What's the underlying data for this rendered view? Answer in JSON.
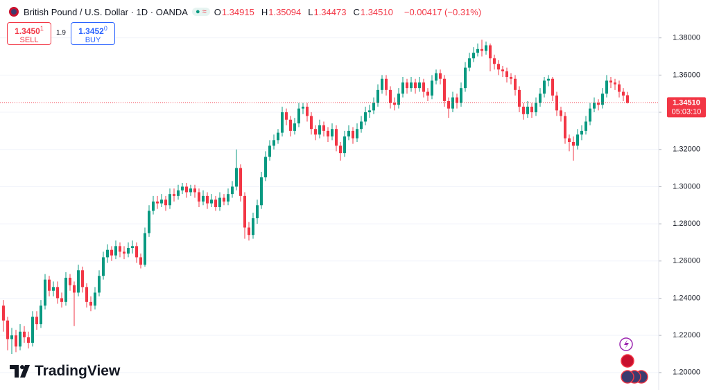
{
  "header": {
    "title": "British Pound / U.S. Dollar · 1D · OANDA",
    "ohlc": [
      {
        "key": "O",
        "value": "1.34915"
      },
      {
        "key": "H",
        "value": "1.35094"
      },
      {
        "key": "L",
        "value": "1.34473"
      },
      {
        "key": "C",
        "value": "1.34510"
      }
    ],
    "change": "−0.00417 (−0.31%)"
  },
  "trade": {
    "sell_price": "1.3450",
    "sell_pip": "1",
    "sell_label": "SELL",
    "spread": "1.9",
    "buy_price": "1.3452",
    "buy_pip": "0",
    "buy_label": "BUY"
  },
  "brand": "TradingView",
  "chart_data": {
    "type": "candlestick",
    "up_color": "#089981",
    "down_color": "#f23645",
    "grid": true,
    "ylim": [
      1.191,
      1.4
    ],
    "yticks": [
      {
        "value": 1.2,
        "label": "1.20000"
      },
      {
        "value": 1.22,
        "label": "1.22000"
      },
      {
        "value": 1.24,
        "label": "1.24000"
      },
      {
        "value": 1.26,
        "label": "1.26000"
      },
      {
        "value": 1.28,
        "label": "1.28000"
      },
      {
        "value": 1.3,
        "label": "1.30000"
      },
      {
        "value": 1.32,
        "label": "1.32000"
      },
      {
        "value": 1.34,
        "label": "1.34000"
      },
      {
        "value": 1.36,
        "label": "1.36000"
      },
      {
        "value": 1.38,
        "label": "1.38000"
      }
    ],
    "last_price": {
      "value": 1.3451,
      "label": "1.34510"
    },
    "countdown": "05:03:10",
    "open": [
      1.236,
      1.228,
      1.218,
      1.22,
      1.214,
      1.222,
      1.219,
      1.216,
      1.23,
      1.226,
      1.236,
      1.25,
      1.244,
      1.246,
      1.24,
      1.238,
      1.251,
      1.247,
      1.243,
      1.255,
      1.246,
      1.238,
      1.236,
      1.243,
      1.252,
      1.262,
      1.266,
      1.263,
      1.268,
      1.265,
      1.264,
      1.267,
      1.268,
      1.262,
      1.258,
      1.275,
      1.287,
      1.292,
      1.291,
      1.293,
      1.29,
      1.296,
      1.295,
      1.298,
      1.3,
      1.297,
      1.299,
      1.297,
      1.292,
      1.295,
      1.291,
      1.293,
      1.289,
      1.294,
      1.292,
      1.296,
      1.3,
      1.31,
      1.295,
      1.278,
      1.274,
      1.283,
      1.29,
      1.305,
      1.316,
      1.322,
      1.325,
      1.329,
      1.34,
      1.336,
      1.33,
      1.334,
      1.342,
      1.343,
      1.338,
      1.331,
      1.328,
      1.333,
      1.33,
      1.327,
      1.331,
      1.322,
      1.318,
      1.327,
      1.33,
      1.326,
      1.331,
      1.335,
      1.34,
      1.341,
      1.345,
      1.352,
      1.358,
      1.352,
      1.345,
      1.344,
      1.35,
      1.356,
      1.353,
      1.356,
      1.353,
      1.356,
      1.351,
      1.349,
      1.357,
      1.361,
      1.358,
      1.346,
      1.342,
      1.348,
      1.345,
      1.353,
      1.364,
      1.369,
      1.372,
      1.374,
      1.373,
      1.376,
      1.369,
      1.366,
      1.363,
      1.362,
      1.359,
      1.358,
      1.352,
      1.343,
      1.339,
      1.343,
      1.34,
      1.345,
      1.35,
      1.357,
      1.358,
      1.349,
      1.341,
      1.338,
      1.326,
      1.324,
      1.322,
      1.328,
      1.33,
      1.335,
      1.342,
      1.345,
      1.344,
      1.35,
      1.357,
      1.356,
      1.355,
      1.351,
      1.34915
    ],
    "high": [
      1.239,
      1.23,
      1.224,
      1.223,
      1.226,
      1.225,
      1.222,
      1.233,
      1.233,
      1.239,
      1.253,
      1.252,
      1.249,
      1.249,
      1.243,
      1.254,
      1.253,
      1.249,
      1.258,
      1.257,
      1.248,
      1.241,
      1.246,
      1.255,
      1.265,
      1.269,
      1.268,
      1.271,
      1.27,
      1.268,
      1.27,
      1.271,
      1.27,
      1.264,
      1.278,
      1.29,
      1.295,
      1.295,
      1.296,
      1.295,
      1.299,
      1.299,
      1.301,
      1.302,
      1.302,
      1.301,
      1.301,
      1.299,
      1.298,
      1.297,
      1.296,
      1.295,
      1.297,
      1.296,
      1.299,
      1.303,
      1.32,
      1.312,
      1.297,
      1.281,
      1.286,
      1.293,
      1.308,
      1.319,
      1.325,
      1.328,
      1.331,
      1.343,
      1.342,
      1.338,
      1.337,
      1.345,
      1.345,
      1.345,
      1.34,
      1.333,
      1.336,
      1.335,
      1.332,
      1.334,
      1.333,
      1.324,
      1.33,
      1.333,
      1.332,
      1.334,
      1.338,
      1.343,
      1.344,
      1.348,
      1.355,
      1.36,
      1.36,
      1.354,
      1.348,
      1.353,
      1.359,
      1.358,
      1.359,
      1.358,
      1.359,
      1.358,
      1.353,
      1.36,
      1.363,
      1.363,
      1.36,
      1.348,
      1.351,
      1.35,
      1.356,
      1.367,
      1.372,
      1.375,
      1.377,
      1.379,
      1.378,
      1.377,
      1.371,
      1.368,
      1.365,
      1.364,
      1.361,
      1.36,
      1.354,
      1.345,
      1.346,
      1.345,
      1.348,
      1.353,
      1.359,
      1.36,
      1.359,
      1.351,
      1.343,
      1.34,
      1.328,
      1.327,
      1.331,
      1.333,
      1.338,
      1.345,
      1.348,
      1.347,
      1.353,
      1.36,
      1.359,
      1.358,
      1.357,
      1.353,
      1.35094
    ],
    "low": [
      1.222,
      1.212,
      1.21,
      1.211,
      1.212,
      1.216,
      1.213,
      1.214,
      1.223,
      1.224,
      1.234,
      1.241,
      1.241,
      1.237,
      1.235,
      1.236,
      1.244,
      1.225,
      1.241,
      1.243,
      1.235,
      1.233,
      1.234,
      1.241,
      1.25,
      1.259,
      1.26,
      1.261,
      1.262,
      1.261,
      1.262,
      1.264,
      1.259,
      1.256,
      1.257,
      1.273,
      1.285,
      1.288,
      1.289,
      1.287,
      1.288,
      1.292,
      1.293,
      1.296,
      1.294,
      1.295,
      1.294,
      1.289,
      1.29,
      1.288,
      1.289,
      1.287,
      1.287,
      1.29,
      1.29,
      1.294,
      1.298,
      1.292,
      1.272,
      1.271,
      1.272,
      1.28,
      1.288,
      1.303,
      1.314,
      1.32,
      1.323,
      1.327,
      1.333,
      1.327,
      1.328,
      1.332,
      1.339,
      1.335,
      1.328,
      1.325,
      1.326,
      1.327,
      1.324,
      1.325,
      1.319,
      1.314,
      1.316,
      1.325,
      1.323,
      1.324,
      1.329,
      1.333,
      1.337,
      1.339,
      1.343,
      1.35,
      1.349,
      1.342,
      1.341,
      1.342,
      1.348,
      1.35,
      1.351,
      1.35,
      1.351,
      1.348,
      1.346,
      1.347,
      1.355,
      1.355,
      1.343,
      1.337,
      1.34,
      1.342,
      1.343,
      1.351,
      1.362,
      1.367,
      1.37,
      1.37,
      1.371,
      1.362,
      1.363,
      1.36,
      1.359,
      1.356,
      1.355,
      1.349,
      1.34,
      1.336,
      1.337,
      1.337,
      1.338,
      1.343,
      1.348,
      1.354,
      1.346,
      1.338,
      1.335,
      1.323,
      1.319,
      1.314,
      1.32,
      1.325,
      1.328,
      1.333,
      1.34,
      1.341,
      1.342,
      1.348,
      1.353,
      1.352,
      1.348,
      1.346,
      1.34473
    ],
    "close": [
      1.228,
      1.218,
      1.22,
      1.214,
      1.222,
      1.219,
      1.216,
      1.23,
      1.226,
      1.236,
      1.25,
      1.244,
      1.246,
      1.24,
      1.238,
      1.251,
      1.247,
      1.243,
      1.255,
      1.246,
      1.238,
      1.236,
      1.243,
      1.252,
      1.262,
      1.266,
      1.263,
      1.268,
      1.265,
      1.264,
      1.267,
      1.268,
      1.262,
      1.258,
      1.275,
      1.287,
      1.292,
      1.291,
      1.293,
      1.29,
      1.296,
      1.295,
      1.298,
      1.3,
      1.297,
      1.299,
      1.297,
      1.292,
      1.295,
      1.291,
      1.293,
      1.289,
      1.294,
      1.292,
      1.296,
      1.3,
      1.31,
      1.295,
      1.278,
      1.274,
      1.283,
      1.29,
      1.305,
      1.316,
      1.322,
      1.325,
      1.329,
      1.34,
      1.336,
      1.33,
      1.334,
      1.342,
      1.343,
      1.338,
      1.331,
      1.328,
      1.333,
      1.33,
      1.327,
      1.331,
      1.322,
      1.318,
      1.327,
      1.33,
      1.326,
      1.331,
      1.335,
      1.34,
      1.341,
      1.345,
      1.352,
      1.358,
      1.352,
      1.345,
      1.344,
      1.35,
      1.356,
      1.353,
      1.356,
      1.353,
      1.356,
      1.351,
      1.349,
      1.357,
      1.361,
      1.358,
      1.346,
      1.342,
      1.348,
      1.345,
      1.353,
      1.364,
      1.369,
      1.372,
      1.374,
      1.373,
      1.376,
      1.369,
      1.366,
      1.363,
      1.362,
      1.359,
      1.358,
      1.352,
      1.343,
      1.339,
      1.343,
      1.34,
      1.345,
      1.35,
      1.357,
      1.358,
      1.349,
      1.341,
      1.338,
      1.326,
      1.324,
      1.322,
      1.328,
      1.33,
      1.335,
      1.342,
      1.345,
      1.344,
      1.35,
      1.357,
      1.356,
      1.355,
      1.351,
      1.349,
      1.3451
    ]
  }
}
